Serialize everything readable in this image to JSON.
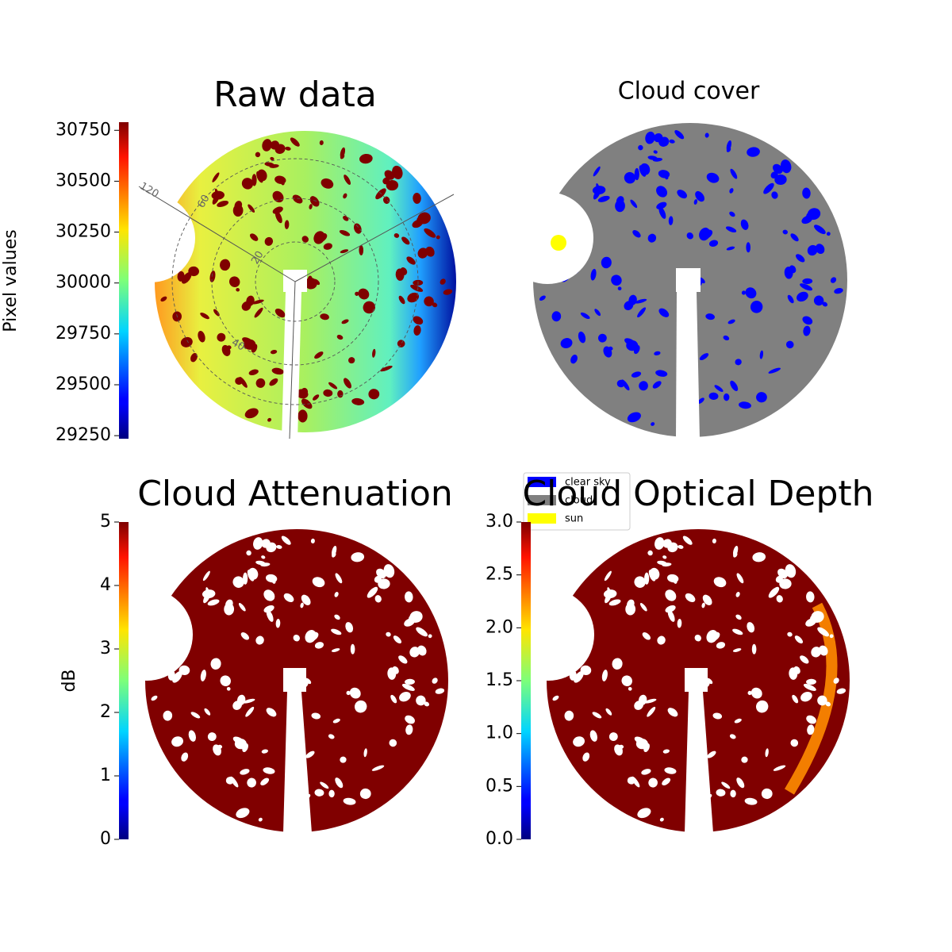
{
  "chart_data": [
    {
      "type": "image",
      "title": "Raw data",
      "ylabel": "Pixel values",
      "colormap": "jet",
      "ylim": [
        29235,
        30790
      ],
      "yticks": [
        29250,
        29500,
        29750,
        30000,
        30250,
        30500,
        30750
      ],
      "annotations": [
        "120",
        "60",
        "20",
        "40"
      ]
    },
    {
      "type": "image",
      "title": "Cloud cover",
      "legend": [
        {
          "name": "clear sky",
          "color": "#0000ff"
        },
        {
          "name": "cloud",
          "color": "#808080"
        },
        {
          "name": "sun",
          "color": "#ffff00"
        }
      ]
    },
    {
      "type": "image",
      "title": "Cloud Attenuation",
      "ylabel": "dB",
      "colormap": "jet",
      "ylim": [
        0,
        5
      ],
      "yticks": [
        0,
        1,
        2,
        3,
        4,
        5
      ]
    },
    {
      "type": "image",
      "title": "Cloud Optical Depth",
      "colormap": "jet",
      "ylim": [
        0,
        3
      ],
      "yticks": [
        {
          "value": 0,
          "label": "0.0"
        },
        {
          "value": 0.5,
          "label": "0.5"
        },
        {
          "value": 1,
          "label": "1.0"
        },
        {
          "value": 1.5,
          "label": "1.5"
        },
        {
          "value": 2,
          "label": "2.0"
        },
        {
          "value": 2.5,
          "label": "2.5"
        },
        {
          "value": 3,
          "label": "3.0"
        }
      ]
    }
  ]
}
